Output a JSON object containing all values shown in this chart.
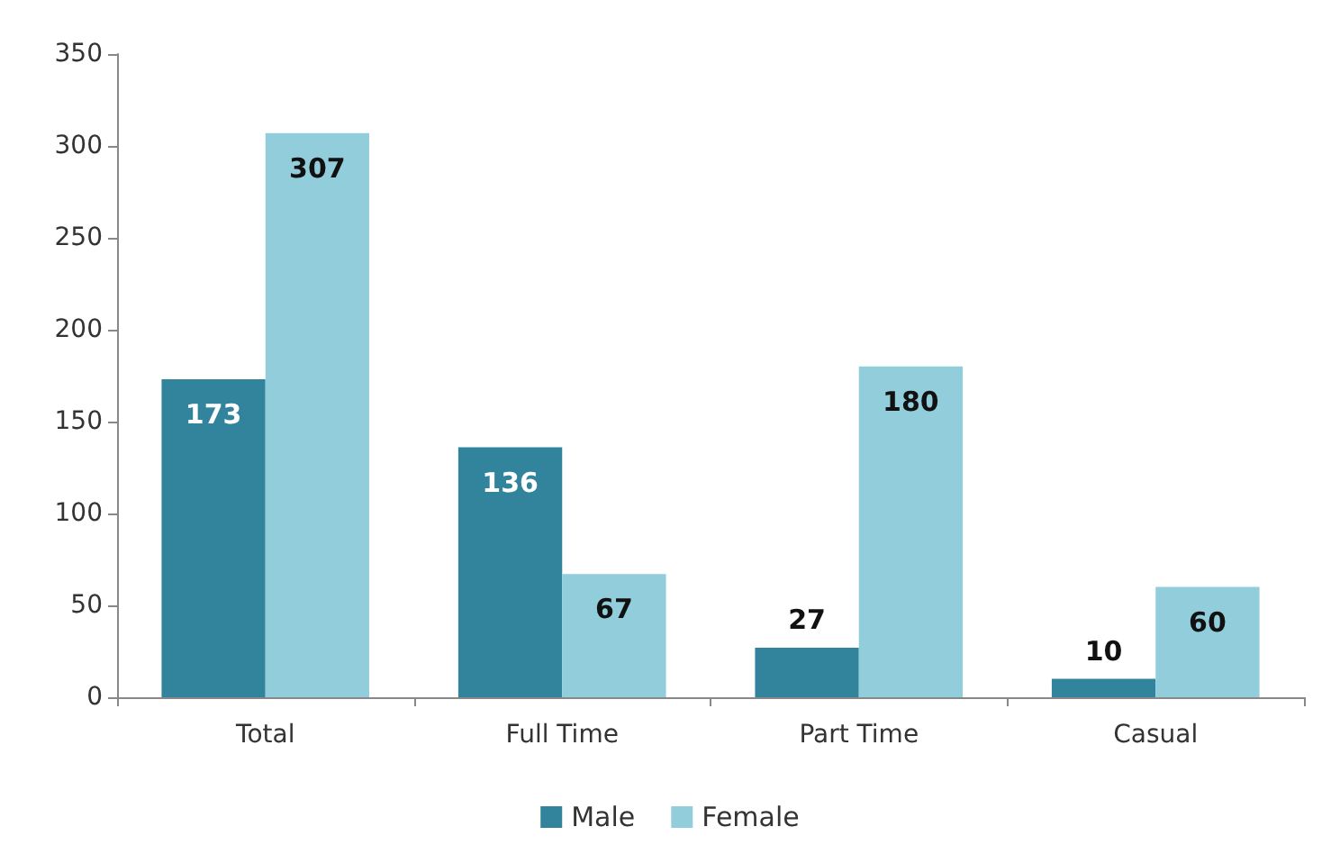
{
  "chart_data": {
    "type": "bar",
    "categories": [
      "Total",
      "Full Time",
      "Part Time",
      "Casual"
    ],
    "series": [
      {
        "name": "Male",
        "color": "#31849b",
        "values": [
          173,
          136,
          27,
          10
        ]
      },
      {
        "name": "Female",
        "color": "#92cddc",
        "values": [
          307,
          67,
          180,
          60
        ]
      }
    ],
    "ylim": [
      0,
      350
    ],
    "yticks": [
      0,
      50,
      100,
      150,
      200,
      250,
      300,
      350
    ],
    "grid": false,
    "legend": "bottom",
    "data_labels": true
  }
}
